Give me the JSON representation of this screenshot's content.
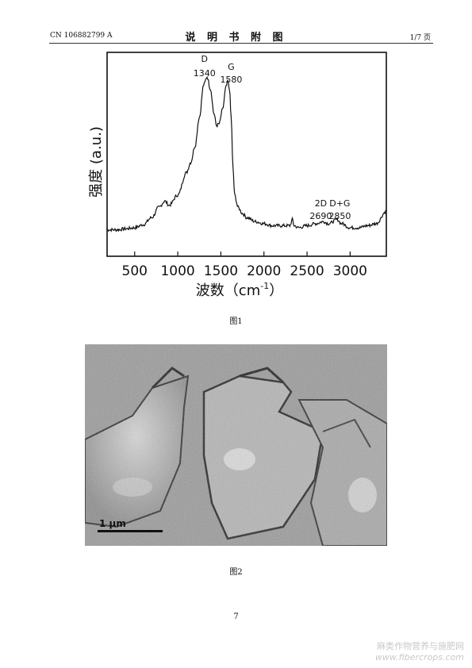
{
  "header": {
    "patent_no": "CN 106882799 A",
    "section_title": "说 明 书 附 图",
    "page_count": "1/7 页"
  },
  "figure1": {
    "caption": "图1",
    "chart_data": {
      "type": "line",
      "xlabel": "波数（cm",
      "xlabel_sup": "-1",
      "xlabel_close": "）",
      "ylabel": "强度 (a.u.)",
      "xlim": [
        180,
        3420
      ],
      "ylim": [
        0,
        100
      ],
      "x_ticks": [
        "500",
        "1000",
        "1500",
        "2000",
        "2500",
        "3000"
      ],
      "grid": false,
      "peaks": [
        {
          "name": "D",
          "position": "1340"
        },
        {
          "name": "G",
          "position": "1580"
        },
        {
          "name": "2D",
          "position": "2690"
        },
        {
          "name": "D+G",
          "position": "2850"
        }
      ],
      "series": [
        {
          "x": [
            180,
            300,
            400,
            500,
            600,
            700,
            780,
            850,
            900,
            1000,
            1100,
            1150,
            1200,
            1250,
            1300,
            1340,
            1380,
            1420,
            1450,
            1480,
            1520,
            1560,
            1580,
            1600,
            1620,
            1640,
            1660,
            1700,
            1750,
            1800,
            1900,
            2000,
            2100,
            2200,
            2300,
            2330,
            2350,
            2400,
            2500,
            2600,
            2690,
            2750,
            2850,
            2900,
            3000,
            3100,
            3200,
            3300,
            3420
          ],
          "y": [
            13,
            13,
            13.5,
            14,
            15.5,
            19,
            24,
            27,
            25,
            30,
            41,
            46,
            54,
            68,
            84,
            88,
            82,
            70,
            64,
            65,
            72,
            83,
            86,
            82,
            68,
            44,
            30,
            24,
            21,
            19,
            17,
            16,
            15,
            15,
            15,
            18,
            15,
            14,
            15,
            16,
            17,
            16,
            18,
            16,
            14,
            14,
            15,
            16,
            22
          ]
        }
      ]
    }
  },
  "figure2": {
    "caption": "图2",
    "scale_bar": "1 μm"
  },
  "page_number": "7",
  "watermark": {
    "line1": "麻类作物营养与施肥网",
    "line2": "www.fibercrops.com"
  }
}
